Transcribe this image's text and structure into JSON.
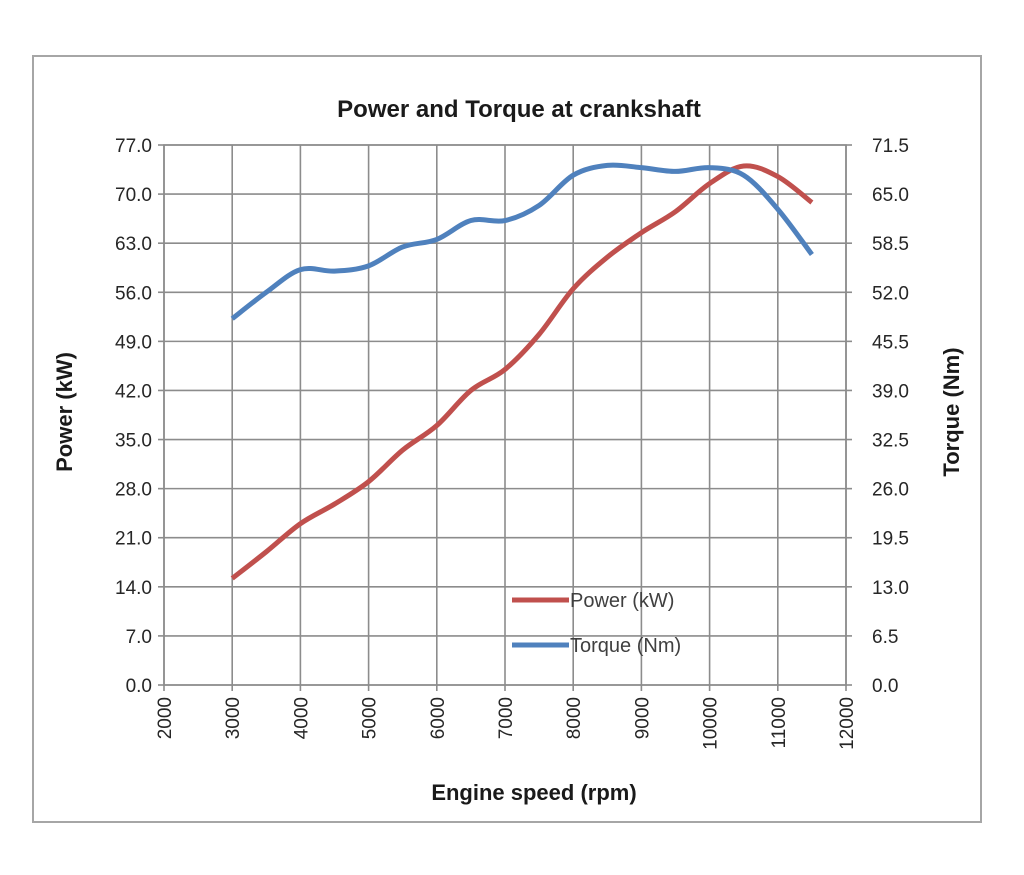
{
  "chart_data": {
    "type": "line",
    "title": "Power and Torque at crankshaft",
    "xlabel": "Engine speed (rpm)",
    "ylabel": "Power (kW)",
    "y2label": "Torque (Nm)",
    "xlim": [
      2000,
      12000
    ],
    "xticks": [
      "2000",
      "3000",
      "4000",
      "5000",
      "6000",
      "7000",
      "8000",
      "9000",
      "10000",
      "11000",
      "12000"
    ],
    "ylim": [
      0,
      77
    ],
    "yticks": [
      "0.0",
      "7.0",
      "14.0",
      "21.0",
      "28.0",
      "35.0",
      "42.0",
      "49.0",
      "56.0",
      "63.0",
      "70.0",
      "77.0"
    ],
    "y2lim": [
      0,
      71.5
    ],
    "y2ticks": [
      "0.0",
      "6.5",
      "13.0",
      "19.5",
      "26.0",
      "32.5",
      "39.0",
      "45.5",
      "52.0",
      "58.5",
      "65.0",
      "71.5"
    ],
    "grid": true,
    "legend_position": "bottom-center",
    "series": [
      {
        "name": "Power (kW)",
        "axis": "left",
        "color": "#c0504d",
        "x": [
          3000,
          3500,
          4000,
          4500,
          5000,
          5500,
          6000,
          6500,
          7000,
          7500,
          8000,
          8500,
          9000,
          9500,
          10000,
          10500,
          11000,
          11500
        ],
        "y": [
          15.2,
          19.0,
          23.0,
          25.8,
          29.0,
          33.5,
          37.0,
          42.0,
          45.0,
          50.0,
          56.5,
          61.0,
          64.5,
          67.5,
          71.5,
          74.0,
          72.5,
          68.8
        ]
      },
      {
        "name": "Torque (Nm)",
        "axis": "right",
        "color": "#4f81bd",
        "x": [
          3000,
          3500,
          4000,
          4500,
          5000,
          5500,
          6000,
          6500,
          7000,
          7500,
          8000,
          8500,
          9000,
          9500,
          10000,
          10500,
          11000,
          11500
        ],
        "y": [
          48.5,
          52.0,
          55.0,
          54.8,
          55.5,
          58.0,
          59.0,
          61.5,
          61.5,
          63.5,
          67.5,
          68.8,
          68.5,
          68.0,
          68.5,
          67.5,
          63.0,
          57.0
        ]
      }
    ]
  }
}
